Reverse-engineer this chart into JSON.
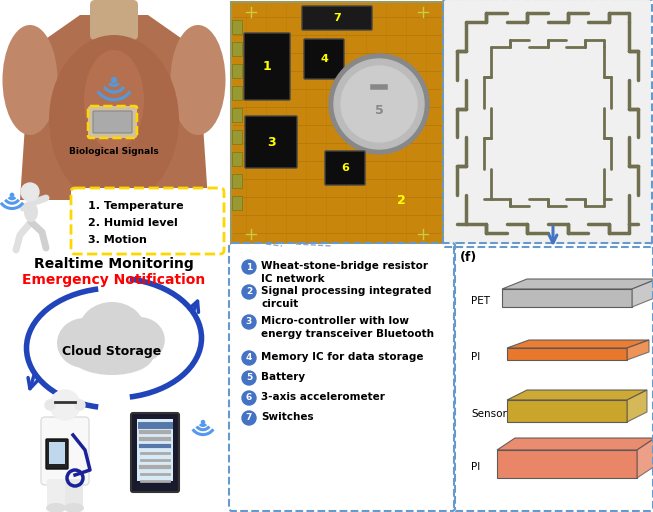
{
  "bg_color": "#ffffff",
  "left_panel": {
    "body_color": "#b07050",
    "body_highlight": "#c08060",
    "skin_color": "#c8a882",
    "wifi_color": "#5599ee",
    "bio_box_color": "#FFD700",
    "bio_text": "Biological Signals",
    "list_items": [
      "1. Temperature",
      "2. Humid level",
      "3. Motion"
    ],
    "realtime_text": "Realtime Monitoring",
    "emergency_text": "Emergency Notification",
    "emergency_color": "#FF0000",
    "cloud_text": "Cloud Storage",
    "arrow_color": "#2244BB"
  },
  "center_bottom": {
    "items": [
      {
        "num": "1",
        "lines": [
          "Wheat-stone-bridge resistor",
          "IC network"
        ]
      },
      {
        "num": "2",
        "lines": [
          "Signal processing integrated",
          "circuit"
        ]
      },
      {
        "num": "3",
        "lines": [
          "Micro-controller with low",
          "energy transceiver Bluetooth"
        ]
      },
      {
        "num": "4",
        "lines": [
          "Memory IC for data storage"
        ]
      },
      {
        "num": "5",
        "lines": [
          "Battery"
        ]
      },
      {
        "num": "6",
        "lines": [
          "3-axis accelerometer"
        ]
      },
      {
        "num": "7",
        "lines": [
          "Switches"
        ]
      }
    ],
    "border_color": "#6699CC",
    "circle_color": "#4472C4",
    "label_f": "(f)"
  },
  "right_bottom": {
    "labels": [
      "PET",
      "PI",
      "Sensor",
      "PI"
    ],
    "colors": [
      "#B8B8B8",
      "#E87020",
      "#C8A020",
      "#E88060"
    ],
    "border_color": "#6699CC",
    "arrow_color": "#4472C4"
  },
  "kirigami": {
    "bg_color": "#f0f0f0",
    "pattern_color": "#707050",
    "border_color": "#6699CC"
  }
}
